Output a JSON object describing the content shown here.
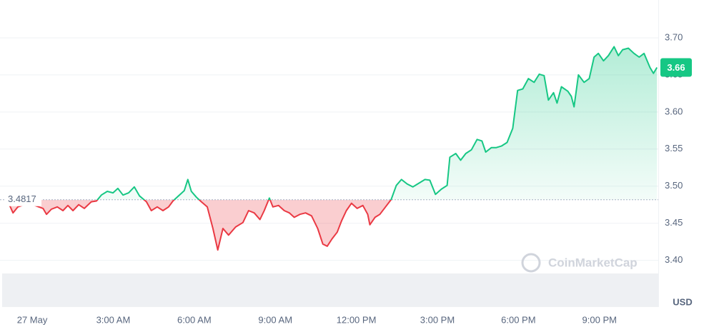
{
  "chart_data": {
    "type": "line",
    "baseline": 3.4817,
    "current_price": 3.66,
    "unit": "USD",
    "watermark": "CoinMarketCap",
    "up_color": "#16c784",
    "down_color": "#ea3943",
    "xlim": [
      -1.06,
      23.15
    ],
    "xticks": [
      {
        "value": 0,
        "label": "27 May"
      },
      {
        "value": 3,
        "label": "3:00 AM"
      },
      {
        "value": 6,
        "label": "6:00 AM"
      },
      {
        "value": 9,
        "label": "9:00 AM"
      },
      {
        "value": 12,
        "label": "12:00 PM"
      },
      {
        "value": 15,
        "label": "3:00 PM"
      },
      {
        "value": 18,
        "label": "6:00 PM"
      },
      {
        "value": 21,
        "label": "9:00 PM"
      }
    ],
    "ylim": [
      3.34,
      3.75
    ],
    "yticks": [
      {
        "value": 3.4,
        "label": "3.40"
      },
      3.45,
      {
        "value": 3.5,
        "label": "3.50"
      },
      3.55,
      {
        "value": 3.6,
        "label": "3.60"
      },
      3.65,
      {
        "value": 3.7,
        "label": "3.70"
      }
    ],
    "grid": true,
    "x": [
      -0.87,
      -0.71,
      -0.53,
      -0.13,
      0.4,
      0.53,
      0.71,
      0.93,
      1.14,
      1.32,
      1.51,
      1.72,
      1.93,
      2.19,
      2.38,
      2.56,
      2.78,
      2.99,
      3.17,
      3.36,
      3.57,
      3.78,
      3.97,
      4.23,
      4.41,
      4.63,
      4.84,
      5.05,
      5.21,
      5.42,
      5.63,
      5.76,
      5.89,
      6.08,
      6.26,
      6.48,
      6.69,
      6.87,
      7.06,
      7.27,
      7.53,
      7.8,
      8.01,
      8.22,
      8.43,
      8.59,
      8.78,
      8.91,
      9.12,
      9.33,
      9.52,
      9.7,
      9.91,
      10.12,
      10.34,
      10.57,
      10.76,
      10.92,
      11.1,
      11.29,
      11.45,
      11.63,
      11.82,
      12.03,
      12.24,
      12.42,
      12.5,
      12.69,
      12.87,
      13.08,
      13.29,
      13.48,
      13.67,
      13.88,
      14.09,
      14.27,
      14.54,
      14.72,
      14.93,
      15.15,
      15.36,
      15.46,
      15.68,
      15.86,
      16.05,
      16.26,
      16.47,
      16.65,
      16.79,
      17.0,
      17.18,
      17.37,
      17.58,
      17.79,
      17.97,
      18.16,
      18.37,
      18.58,
      18.77,
      18.95,
      19.11,
      19.3,
      19.43,
      19.59,
      19.83,
      19.96,
      20.06,
      20.22,
      20.43,
      20.62,
      20.8,
      20.96,
      21.15,
      21.33,
      21.54,
      21.7,
      21.86,
      22.07,
      22.28,
      22.47,
      22.65,
      22.87,
      23.0,
      23.13
    ],
    "values": [
      3.477,
      3.464,
      3.472,
      3.477,
      3.47,
      3.462,
      3.469,
      3.472,
      3.467,
      3.474,
      3.467,
      3.475,
      3.47,
      3.479,
      3.48,
      3.488,
      3.493,
      3.491,
      3.497,
      3.488,
      3.491,
      3.499,
      3.487,
      3.479,
      3.467,
      3.472,
      3.467,
      3.472,
      3.48,
      3.487,
      3.494,
      3.509,
      3.493,
      3.485,
      3.479,
      3.472,
      3.443,
      3.414,
      3.443,
      3.434,
      3.445,
      3.451,
      3.467,
      3.464,
      3.455,
      3.467,
      3.484,
      3.472,
      3.474,
      3.467,
      3.464,
      3.458,
      3.462,
      3.464,
      3.46,
      3.443,
      3.422,
      3.419,
      3.429,
      3.438,
      3.453,
      3.467,
      3.477,
      3.47,
      3.474,
      3.462,
      3.448,
      3.458,
      3.462,
      3.472,
      3.482,
      3.501,
      3.509,
      3.503,
      3.499,
      3.503,
      3.509,
      3.508,
      3.489,
      3.496,
      3.501,
      3.539,
      3.544,
      3.535,
      3.544,
      3.549,
      3.563,
      3.561,
      3.546,
      3.552,
      3.552,
      3.554,
      3.559,
      3.578,
      3.629,
      3.631,
      3.645,
      3.64,
      3.651,
      3.649,
      3.616,
      3.626,
      3.612,
      3.634,
      3.628,
      3.621,
      3.607,
      3.65,
      3.64,
      3.645,
      3.674,
      3.679,
      3.669,
      3.676,
      3.688,
      3.676,
      3.684,
      3.686,
      3.679,
      3.674,
      3.679,
      3.66,
      3.652,
      3.66
    ]
  }
}
